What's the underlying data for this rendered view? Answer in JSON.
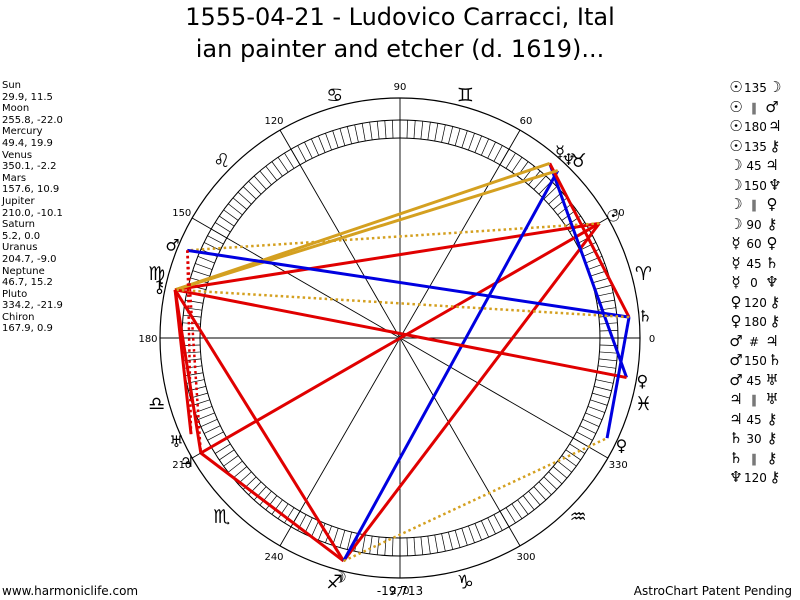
{
  "title": {
    "line1": "1555-04-21 - Ludovico Carracci, Ital",
    "line2": "ian painter and etcher (d. 1619)..."
  },
  "planets": [
    {
      "name": "Sun",
      "coords": "29.9, 11.5"
    },
    {
      "name": "Moon",
      "coords": "255.8, -22.0"
    },
    {
      "name": "Mercury",
      "coords": "49.4, 19.9"
    },
    {
      "name": "Venus",
      "coords": "350.1, -2.2"
    },
    {
      "name": "Mars",
      "coords": "157.6, 10.9"
    },
    {
      "name": "Jupiter",
      "coords": "210.0, -10.1"
    },
    {
      "name": "Saturn",
      "coords": "5.2, 0.0"
    },
    {
      "name": "Uranus",
      "coords": "204.7, -9.0"
    },
    {
      "name": "Neptune",
      "coords": "46.7, 15.2"
    },
    {
      "name": "Pluto",
      "coords": "334.2, -21.9"
    },
    {
      "name": "Chiron",
      "coords": "167.9, 0.9"
    }
  ],
  "aspects": [
    {
      "p1": "☉",
      "aspect": "135",
      "p2": "☽"
    },
    {
      "p1": "☉",
      "aspect": "∥",
      "p2": "♂"
    },
    {
      "p1": "☉",
      "aspect": "180",
      "p2": "♃"
    },
    {
      "p1": "☉",
      "aspect": "135",
      "p2": "⚷"
    },
    {
      "p1": "☽",
      "aspect": "45",
      "p2": "♃"
    },
    {
      "p1": "☽",
      "aspect": "150",
      "p2": "♆"
    },
    {
      "p1": "☽",
      "aspect": "∥",
      "p2": "♀"
    },
    {
      "p1": "☽",
      "aspect": "90",
      "p2": "⚷"
    },
    {
      "p1": "☿",
      "aspect": "60",
      "p2": "♀"
    },
    {
      "p1": "☿",
      "aspect": "45",
      "p2": "♄"
    },
    {
      "p1": "☿",
      "aspect": "0",
      "p2": "♆"
    },
    {
      "p1": "♀",
      "aspect": "120",
      "p2": "⚷"
    },
    {
      "p1": "♀",
      "aspect": "180",
      "p2": "⚷"
    },
    {
      "p1": "♂",
      "aspect": "#",
      "p2": "♃"
    },
    {
      "p1": "♂",
      "aspect": "150",
      "p2": "♄"
    },
    {
      "p1": "♂",
      "aspect": "45",
      "p2": "♅"
    },
    {
      "p1": "♃",
      "aspect": "∥",
      "p2": "♅"
    },
    {
      "p1": "♃",
      "aspect": "45",
      "p2": "⚷"
    },
    {
      "p1": "♄",
      "aspect": "30",
      "p2": "⚷"
    },
    {
      "p1": "♄",
      "aspect": "∥",
      "p2": "⚷"
    },
    {
      "p1": "♆",
      "aspect": "120",
      "p2": "⚷"
    }
  ],
  "wheel": {
    "degree_labels": [
      "0",
      "30",
      "60",
      "90",
      "120",
      "150",
      "180",
      "210",
      "240",
      "270",
      "300",
      "330"
    ],
    "degree_values": [
      0,
      30,
      60,
      90,
      120,
      150,
      180,
      210,
      240,
      270,
      300,
      330
    ],
    "sign_glyphs": [
      "♈",
      "♉",
      "♊",
      "♋",
      "♌",
      "♍",
      "♎",
      "♏",
      "♐",
      "♑",
      "♒",
      "♓"
    ],
    "bottom_value": "-19,713",
    "bodies": [
      {
        "glyph": "☉",
        "lon": 29.9,
        "color": "#000000"
      },
      {
        "glyph": "☽",
        "lon": 255.8,
        "color": "#000000"
      },
      {
        "glyph": "☿",
        "lon": 49.4,
        "color": "#000000"
      },
      {
        "glyph": "♀",
        "lon": 350.1,
        "color": "#000000"
      },
      {
        "glyph": "♂",
        "lon": 157.6,
        "color": "#000000"
      },
      {
        "glyph": "♃",
        "lon": 210.0,
        "color": "#000000"
      },
      {
        "glyph": "♄",
        "lon": 5.2,
        "color": "#000000"
      },
      {
        "glyph": "♅",
        "lon": 204.7,
        "color": "#000000"
      },
      {
        "glyph": "♆",
        "lon": 46.7,
        "color": "#000000"
      },
      {
        "glyph": "♀",
        "lon": 334.2,
        "color": "#000000"
      },
      {
        "glyph": "⚷",
        "lon": 167.9,
        "color": "#000000"
      }
    ],
    "aspect_lines": [
      {
        "from": 29.9,
        "to": 210.0,
        "color": "#e00000",
        "style": "solid"
      },
      {
        "from": 29.9,
        "to": 167.9,
        "color": "#e00000",
        "style": "solid"
      },
      {
        "from": 29.9,
        "to": 255.8,
        "color": "#e00000",
        "style": "solid"
      },
      {
        "from": 29.9,
        "to": 157.6,
        "color": "#d4a020",
        "style": "dotted"
      },
      {
        "from": 255.8,
        "to": 167.9,
        "color": "#e00000",
        "style": "solid"
      },
      {
        "from": 255.8,
        "to": 210.0,
        "color": "#e00000",
        "style": "solid"
      },
      {
        "from": 255.8,
        "to": 46.7,
        "color": "#0000e0",
        "style": "solid"
      },
      {
        "from": 255.8,
        "to": 334.2,
        "color": "#d4a020",
        "style": "dotted"
      },
      {
        "from": 49.4,
        "to": 350.1,
        "color": "#0000e0",
        "style": "solid"
      },
      {
        "from": 49.4,
        "to": 5.2,
        "color": "#e00000",
        "style": "solid"
      },
      {
        "from": 49.4,
        "to": 167.9,
        "color": "#d4a020",
        "style": "solid"
      },
      {
        "from": 46.7,
        "to": 167.9,
        "color": "#d4a020",
        "style": "solid"
      },
      {
        "from": 350.1,
        "to": 167.9,
        "color": "#e00000",
        "style": "solid"
      },
      {
        "from": 334.2,
        "to": 5.2,
        "color": "#0000e0",
        "style": "solid"
      },
      {
        "from": 157.6,
        "to": 5.2,
        "color": "#0000e0",
        "style": "solid"
      },
      {
        "from": 157.6,
        "to": 210.0,
        "color": "#e00000",
        "style": "dotted"
      },
      {
        "from": 5.2,
        "to": 167.9,
        "color": "#d4a020",
        "style": "dotted"
      },
      {
        "from": 210.0,
        "to": 167.9,
        "color": "#e00000",
        "style": "solid"
      },
      {
        "from": 204.7,
        "to": 167.9,
        "color": "#e00000",
        "style": "solid"
      },
      {
        "from": 157.6,
        "to": 204.7,
        "color": "#e00000",
        "style": "dotted"
      }
    ]
  },
  "footer": {
    "left": "www.harmoniclife.com",
    "right": "AstroChart Patent Pending"
  }
}
